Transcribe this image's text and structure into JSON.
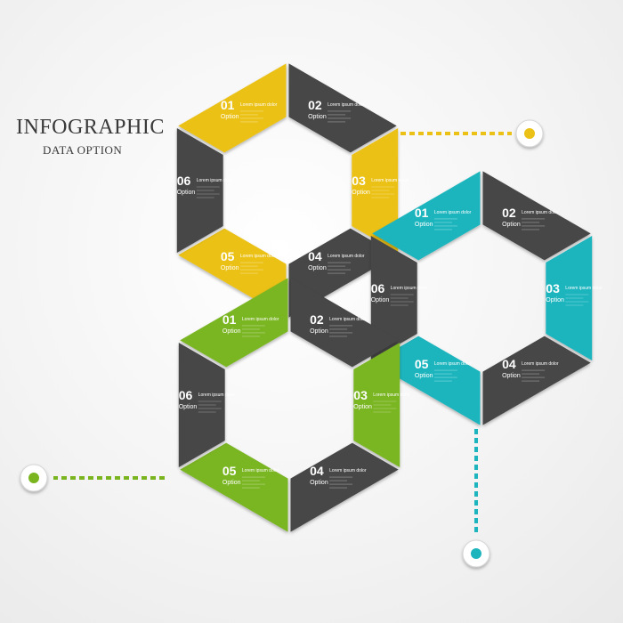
{
  "header": {
    "title": "INFOGRAPHIC",
    "subtitle": "DATA OPTION"
  },
  "colors": {
    "yellow": "#ebc115",
    "teal": "#1cb5be",
    "green": "#7ab520",
    "dark": "#474747",
    "background": "#f4f4f4"
  },
  "hexagons": [
    {
      "name": "yellow",
      "accent": "#ebc115",
      "segments": [
        {
          "number": "01",
          "label": "Option",
          "heading": "Lorem ipsum dolor",
          "colored": true
        },
        {
          "number": "02",
          "label": "Option",
          "heading": "Lorem ipsum dolor",
          "colored": false
        },
        {
          "number": "03",
          "label": "Option",
          "heading": "Lorem ipsum dolor",
          "colored": true
        },
        {
          "number": "04",
          "label": "Option",
          "heading": "Lorem ipsum dolor",
          "colored": false
        },
        {
          "number": "05",
          "label": "Option",
          "heading": "Lorem ipsum dolor",
          "colored": true
        },
        {
          "number": "06",
          "label": "Option",
          "heading": "Lorem ipsum dolor",
          "colored": false
        }
      ]
    },
    {
      "name": "teal",
      "accent": "#1cb5be",
      "segments": [
        {
          "number": "01",
          "label": "Option",
          "heading": "Lorem ipsum dolor",
          "colored": true
        },
        {
          "number": "02",
          "label": "Option",
          "heading": "Lorem ipsum dolor",
          "colored": false
        },
        {
          "number": "03",
          "label": "Option",
          "heading": "Lorem ipsum dolor",
          "colored": true
        },
        {
          "number": "04",
          "label": "Option",
          "heading": "Lorem ipsum dolor",
          "colored": false
        },
        {
          "number": "05",
          "label": "Option",
          "heading": "Lorem ipsum dolor",
          "colored": true
        },
        {
          "number": "06",
          "label": "Option",
          "heading": "Lorem ipsum dolor",
          "colored": false
        }
      ]
    },
    {
      "name": "green",
      "accent": "#7ab520",
      "segments": [
        {
          "number": "01",
          "label": "Option",
          "heading": "Lorem ipsum dolor",
          "colored": true
        },
        {
          "number": "02",
          "label": "Option",
          "heading": "Lorem ipsum dolor",
          "colored": false
        },
        {
          "number": "03",
          "label": "Option",
          "heading": "Lorem ipsum dolor",
          "colored": true
        },
        {
          "number": "04",
          "label": "Option",
          "heading": "Lorem ipsum dolor",
          "colored": false
        },
        {
          "number": "05",
          "label": "Option",
          "heading": "Lorem ipsum dolor",
          "colored": true
        },
        {
          "number": "06",
          "label": "Option",
          "heading": "Lorem ipsum dolor",
          "colored": false
        }
      ]
    }
  ],
  "connectors": [
    {
      "name": "connector-yellow",
      "color": "#ebc115"
    },
    {
      "name": "connector-green",
      "color": "#7ab520"
    },
    {
      "name": "connector-teal",
      "color": "#1cb5be"
    }
  ]
}
